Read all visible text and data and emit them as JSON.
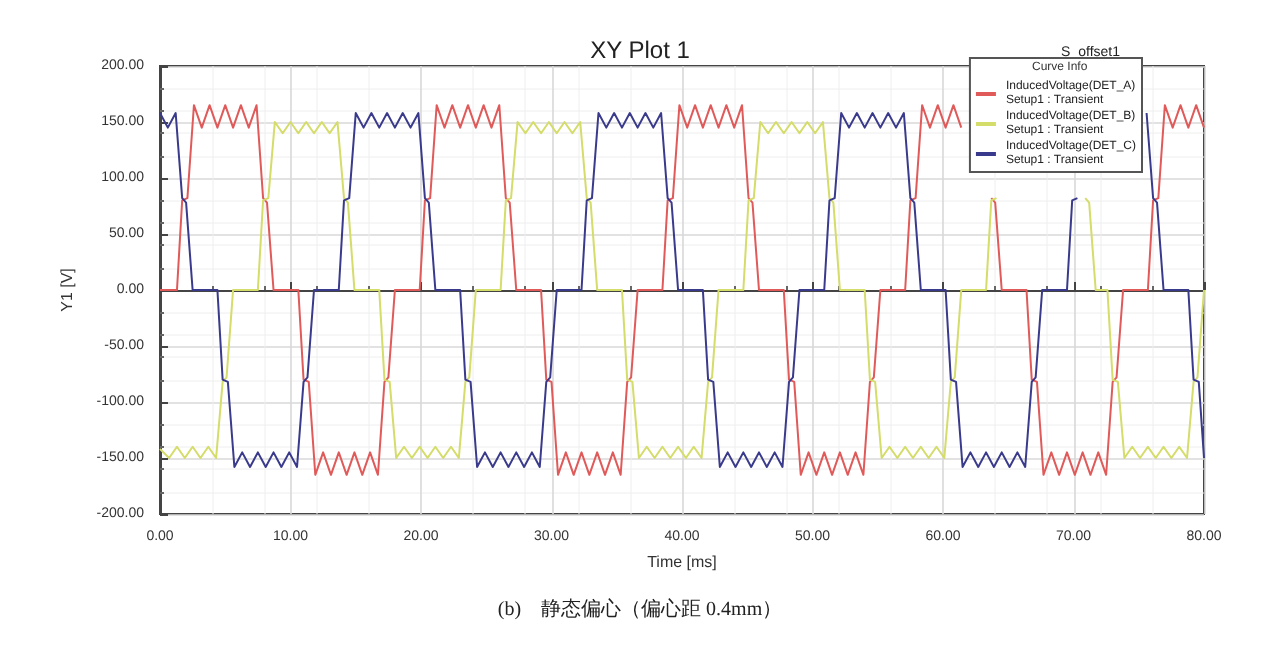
{
  "chart_data": {
    "type": "line",
    "title": "XY Plot 1",
    "xlabel": "Time [ms]",
    "ylabel": "Y1 [V]",
    "legend_title": "Curve Info",
    "legend": "top right",
    "grid": true,
    "annotations": [
      "S_offset1",
      "(b)    静态偏心（偏心距 0.4mm）"
    ],
    "xlim": [
      0,
      80
    ],
    "ylim": [
      -200,
      200
    ],
    "xticks": [
      {
        "value": 0,
        "label": "0.00"
      },
      {
        "value": 10,
        "label": "10.00"
      },
      {
        "value": 20,
        "label": "20.00"
      },
      {
        "value": 30,
        "label": "30.00"
      },
      {
        "value": 40,
        "label": "40.00"
      },
      {
        "value": 50,
        "label": "50.00"
      },
      {
        "value": 60,
        "label": "60.00"
      },
      {
        "value": 70,
        "label": "70.00"
      },
      {
        "value": 80,
        "label": "80.00"
      }
    ],
    "yticks": [
      {
        "value": -200,
        "label": "-200.00"
      },
      {
        "value": -150,
        "label": "-150.00"
      },
      {
        "value": -100,
        "label": "-100.00"
      },
      {
        "value": -50,
        "label": "-50.00"
      },
      {
        "value": 0,
        "label": "0.00"
      },
      {
        "value": 50,
        "label": "50.00"
      },
      {
        "value": 100,
        "label": "100.00"
      },
      {
        "value": 150,
        "label": "150.00"
      },
      {
        "value": 200,
        "label": "200.00"
      }
    ],
    "series": [
      {
        "name": "InducedVoltage(DET_A)\nSetup1 : Transient",
        "color": "#e05a5a",
        "x": [
          0,
          1.3,
          1.7,
          2.1,
          2.6,
          3.2,
          3.8,
          4.4,
          5.0,
          5.6,
          6.2,
          6.8,
          7.4,
          7.9,
          8.2,
          8.7,
          10.6,
          11.0,
          11.4,
          11.9,
          12.5,
          13.1,
          13.7,
          14.3,
          14.9,
          15.5,
          16.1,
          16.7,
          17.2,
          17.5,
          18.0,
          19.9,
          20.3,
          20.7,
          21.2,
          21.8,
          22.4,
          23.0,
          23.6,
          24.2,
          24.8,
          25.4,
          26.0,
          26.5,
          26.8,
          27.3,
          29.2,
          29.6,
          30.0,
          30.5,
          31.1,
          31.7,
          32.3,
          32.9,
          33.5,
          34.1,
          34.7,
          35.3,
          35.8,
          36.1,
          36.6,
          38.5,
          38.9,
          39.3,
          39.8,
          40.4,
          41.0,
          41.6,
          42.2,
          42.8,
          43.4,
          44.0,
          44.6,
          45.1,
          45.4,
          45.9,
          47.8,
          48.2,
          48.6,
          49.1,
          49.7,
          50.3,
          50.9,
          51.5,
          52.1,
          52.7,
          53.3,
          53.9,
          54.4,
          54.7,
          55.2,
          57.1,
          57.5,
          57.9,
          58.4,
          59.0,
          59.6,
          60.2,
          60.8,
          61.4,
          62.6,
          63.7,
          64.0,
          64.5,
          66.4,
          66.8,
          67.2,
          67.7,
          68.3,
          68.9,
          69.5,
          70.1,
          70.7,
          71.3,
          71.9,
          72.5,
          73.0,
          73.3,
          73.8,
          75.7,
          76.1,
          76.5,
          77.0,
          77.6,
          78.2,
          78.8,
          79.4,
          80.0
        ],
        "values": [
          0,
          0,
          80,
          82,
          165,
          145,
          165,
          145,
          165,
          145,
          165,
          145,
          165,
          82,
          78,
          0,
          0,
          -80,
          -82,
          -165,
          -145,
          -165,
          -145,
          -165,
          -145,
          -165,
          -145,
          -165,
          -82,
          -78,
          0,
          0,
          80,
          82,
          165,
          145,
          165,
          145,
          165,
          145,
          165,
          145,
          165,
          82,
          78,
          0,
          0,
          -80,
          -82,
          -165,
          -145,
          -165,
          -145,
          -165,
          -145,
          -165,
          -145,
          -165,
          -82,
          -78,
          0,
          0,
          80,
          82,
          165,
          145,
          165,
          145,
          165,
          145,
          165,
          145,
          165,
          82,
          78,
          0,
          0,
          -80,
          -82,
          -165,
          -145,
          -165,
          -145,
          -165,
          -145,
          -165,
          -145,
          -165,
          -82,
          -78,
          0,
          0,
          80,
          82,
          165,
          145,
          165,
          145,
          165,
          145,
          null,
          82,
          78,
          0,
          0,
          -80,
          -82,
          -165,
          -145,
          -165,
          -145,
          -165,
          -145,
          -165,
          -145,
          -165,
          -82,
          -78,
          0,
          0,
          80,
          82,
          165,
          145,
          165,
          145,
          165,
          145
        ]
      },
      {
        "name": "InducedVoltage(DET_B)\nSetup1 : Transient",
        "color": "#d4dc6a",
        "x": [
          0,
          0.7,
          1.3,
          1.9,
          2.5,
          3.1,
          3.7,
          4.3,
          4.8,
          5.1,
          5.6,
          7.5,
          7.9,
          8.3,
          8.8,
          9.4,
          10.0,
          10.6,
          11.2,
          11.8,
          12.4,
          13.0,
          13.6,
          14.1,
          14.4,
          14.9,
          16.8,
          17.2,
          17.6,
          18.1,
          18.7,
          19.3,
          19.9,
          20.5,
          21.1,
          21.7,
          22.3,
          22.9,
          23.4,
          23.7,
          24.2,
          26.1,
          26.5,
          26.9,
          27.4,
          28.0,
          28.6,
          29.2,
          29.8,
          30.4,
          31.0,
          31.6,
          32.2,
          32.7,
          33.0,
          33.5,
          35.4,
          35.8,
          36.2,
          36.7,
          37.3,
          37.9,
          38.5,
          39.1,
          39.7,
          40.3,
          40.9,
          41.5,
          42.0,
          42.3,
          42.8,
          44.7,
          45.1,
          45.5,
          46.0,
          46.6,
          47.2,
          47.8,
          48.4,
          49.0,
          49.6,
          50.2,
          50.8,
          51.3,
          51.6,
          52.1,
          54.0,
          54.4,
          54.8,
          55.3,
          55.9,
          56.5,
          57.1,
          57.7,
          58.3,
          58.9,
          59.5,
          60.1,
          60.6,
          60.9,
          61.4,
          63.3,
          63.7,
          64.1,
          67.0,
          70.9,
          71.2,
          71.7,
          72.6,
          73.0,
          73.4,
          73.9,
          74.5,
          75.1,
          75.7,
          76.3,
          76.9,
          77.5,
          78.1,
          78.7,
          79.2,
          79.5,
          80.0
        ],
        "values": [
          -142,
          -150,
          -140,
          -150,
          -140,
          -150,
          -140,
          -150,
          -82,
          -78,
          0,
          0,
          80,
          82,
          150,
          140,
          150,
          140,
          150,
          140,
          150,
          140,
          150,
          82,
          78,
          0,
          0,
          -80,
          -82,
          -150,
          -140,
          -150,
          -140,
          -150,
          -140,
          -150,
          -140,
          -150,
          -82,
          -78,
          0,
          0,
          80,
          82,
          150,
          140,
          150,
          140,
          150,
          140,
          150,
          140,
          150,
          82,
          78,
          0,
          0,
          -80,
          -82,
          -150,
          -140,
          -150,
          -140,
          -150,
          -140,
          -150,
          -140,
          -150,
          -82,
          -78,
          0,
          0,
          80,
          82,
          150,
          140,
          150,
          140,
          150,
          140,
          150,
          140,
          150,
          82,
          78,
          0,
          0,
          -80,
          -82,
          -150,
          -140,
          -150,
          -140,
          -150,
          -140,
          -150,
          -140,
          -150,
          -82,
          -78,
          0,
          0,
          80,
          82,
          null,
          82,
          78,
          0,
          0,
          -80,
          -82,
          -150,
          -140,
          -150,
          -140,
          -150,
          -140,
          -150,
          -140,
          -150,
          -82,
          -78,
          0
        ]
      },
      {
        "name": "InducedVoltage(DET_C)\nSetup1 : Transient",
        "color": "#3a3a8c",
        "x": [
          0,
          0.6,
          1.2,
          1.7,
          2.0,
          2.5,
          4.4,
          4.8,
          5.2,
          5.7,
          6.3,
          6.9,
          7.5,
          8.1,
          8.7,
          9.3,
          9.9,
          10.5,
          11.0,
          11.3,
          11.8,
          13.7,
          14.1,
          14.5,
          15.0,
          15.6,
          16.2,
          16.8,
          17.4,
          18.0,
          18.6,
          19.2,
          19.8,
          20.3,
          20.6,
          21.1,
          23.0,
          23.4,
          23.8,
          24.3,
          24.9,
          25.5,
          26.1,
          26.7,
          27.3,
          27.9,
          28.5,
          29.1,
          29.6,
          29.9,
          30.4,
          32.3,
          32.7,
          33.1,
          33.6,
          34.2,
          34.8,
          35.4,
          36.0,
          36.6,
          37.2,
          37.8,
          38.4,
          38.9,
          39.2,
          39.7,
          41.6,
          42.0,
          42.4,
          42.9,
          43.5,
          44.1,
          44.7,
          45.3,
          45.9,
          46.5,
          47.1,
          47.7,
          48.2,
          48.5,
          49.0,
          50.9,
          51.3,
          51.7,
          52.2,
          52.8,
          53.4,
          54.0,
          54.6,
          55.2,
          55.8,
          56.4,
          57.0,
          57.5,
          57.8,
          58.3,
          60.2,
          60.6,
          61.0,
          61.5,
          62.1,
          62.7,
          63.3,
          63.9,
          64.5,
          65.1,
          65.7,
          66.3,
          66.8,
          67.1,
          67.6,
          69.5,
          69.9,
          70.3,
          72.5,
          75.6,
          76.1,
          76.4,
          76.9,
          78.8,
          79.2,
          79.6,
          80.0
        ],
        "values": [
          158,
          145,
          158,
          82,
          78,
          0,
          0,
          -80,
          -82,
          -158,
          -145,
          -158,
          -145,
          -158,
          -145,
          -158,
          -145,
          -158,
          -82,
          -78,
          0,
          0,
          80,
          82,
          158,
          145,
          158,
          145,
          158,
          145,
          158,
          145,
          158,
          82,
          78,
          0,
          0,
          -80,
          -82,
          -158,
          -145,
          -158,
          -145,
          -158,
          -145,
          -158,
          -145,
          -158,
          -82,
          -78,
          0,
          0,
          80,
          82,
          158,
          145,
          158,
          145,
          158,
          145,
          158,
          145,
          158,
          82,
          78,
          0,
          0,
          -80,
          -82,
          -158,
          -145,
          -158,
          -145,
          -158,
          -145,
          -158,
          -145,
          -158,
          -82,
          -78,
          0,
          0,
          80,
          82,
          158,
          145,
          158,
          145,
          158,
          145,
          158,
          145,
          158,
          82,
          78,
          0,
          0,
          -80,
          -82,
          -158,
          -145,
          -158,
          -145,
          -158,
          -145,
          -158,
          -145,
          -158,
          -82,
          -78,
          0,
          0,
          80,
          82,
          null,
          158,
          82,
          78,
          0,
          0,
          -80,
          -82,
          -150
        ]
      }
    ]
  }
}
